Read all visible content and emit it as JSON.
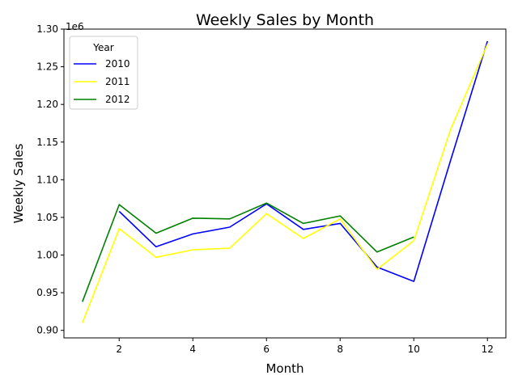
{
  "chart_data": {
    "type": "line",
    "title": "Weekly Sales by Month",
    "xlabel": "Month",
    "ylabel": "Weekly Sales",
    "offset_label": "1e6",
    "x_ticks": [
      2,
      4,
      6,
      8,
      10,
      12
    ],
    "x_tick_labels": [
      "2",
      "4",
      "6",
      "8",
      "10",
      "12"
    ],
    "y_ticks": [
      0.9,
      0.95,
      1.0,
      1.05,
      1.1,
      1.15,
      1.2,
      1.25,
      1.3
    ],
    "y_tick_labels": [
      "0.90",
      "0.95",
      "1.00",
      "1.05",
      "1.10",
      "1.15",
      "1.20",
      "1.25",
      "1.30"
    ],
    "xlim": [
      0.5,
      12.5
    ],
    "ylim": [
      0.89,
      1.3
    ],
    "grid": false,
    "legend": {
      "title": "Year",
      "position": "upper-left"
    },
    "series": [
      {
        "name": "2010",
        "color": "#0000ff",
        "x": [
          2,
          3,
          4,
          5,
          6,
          7,
          8,
          9,
          10,
          11,
          12
        ],
        "values": [
          1.058,
          1.011,
          1.028,
          1.037,
          1.068,
          1.034,
          1.042,
          0.984,
          0.965,
          1.126,
          1.284
        ]
      },
      {
        "name": "2011",
        "color": "#ffff00",
        "x": [
          1,
          2,
          3,
          4,
          5,
          6,
          7,
          8,
          9,
          10,
          11,
          12
        ],
        "values": [
          0.91,
          1.035,
          0.997,
          1.007,
          1.009,
          1.055,
          1.022,
          1.048,
          0.981,
          1.019,
          1.167,
          1.28
        ]
      },
      {
        "name": "2012",
        "color": "#008000",
        "x": [
          1,
          2,
          3,
          4,
          5,
          6,
          7,
          8,
          9,
          10
        ],
        "values": [
          0.938,
          1.067,
          1.029,
          1.049,
          1.048,
          1.069,
          1.042,
          1.052,
          1.004,
          1.024
        ]
      }
    ]
  }
}
